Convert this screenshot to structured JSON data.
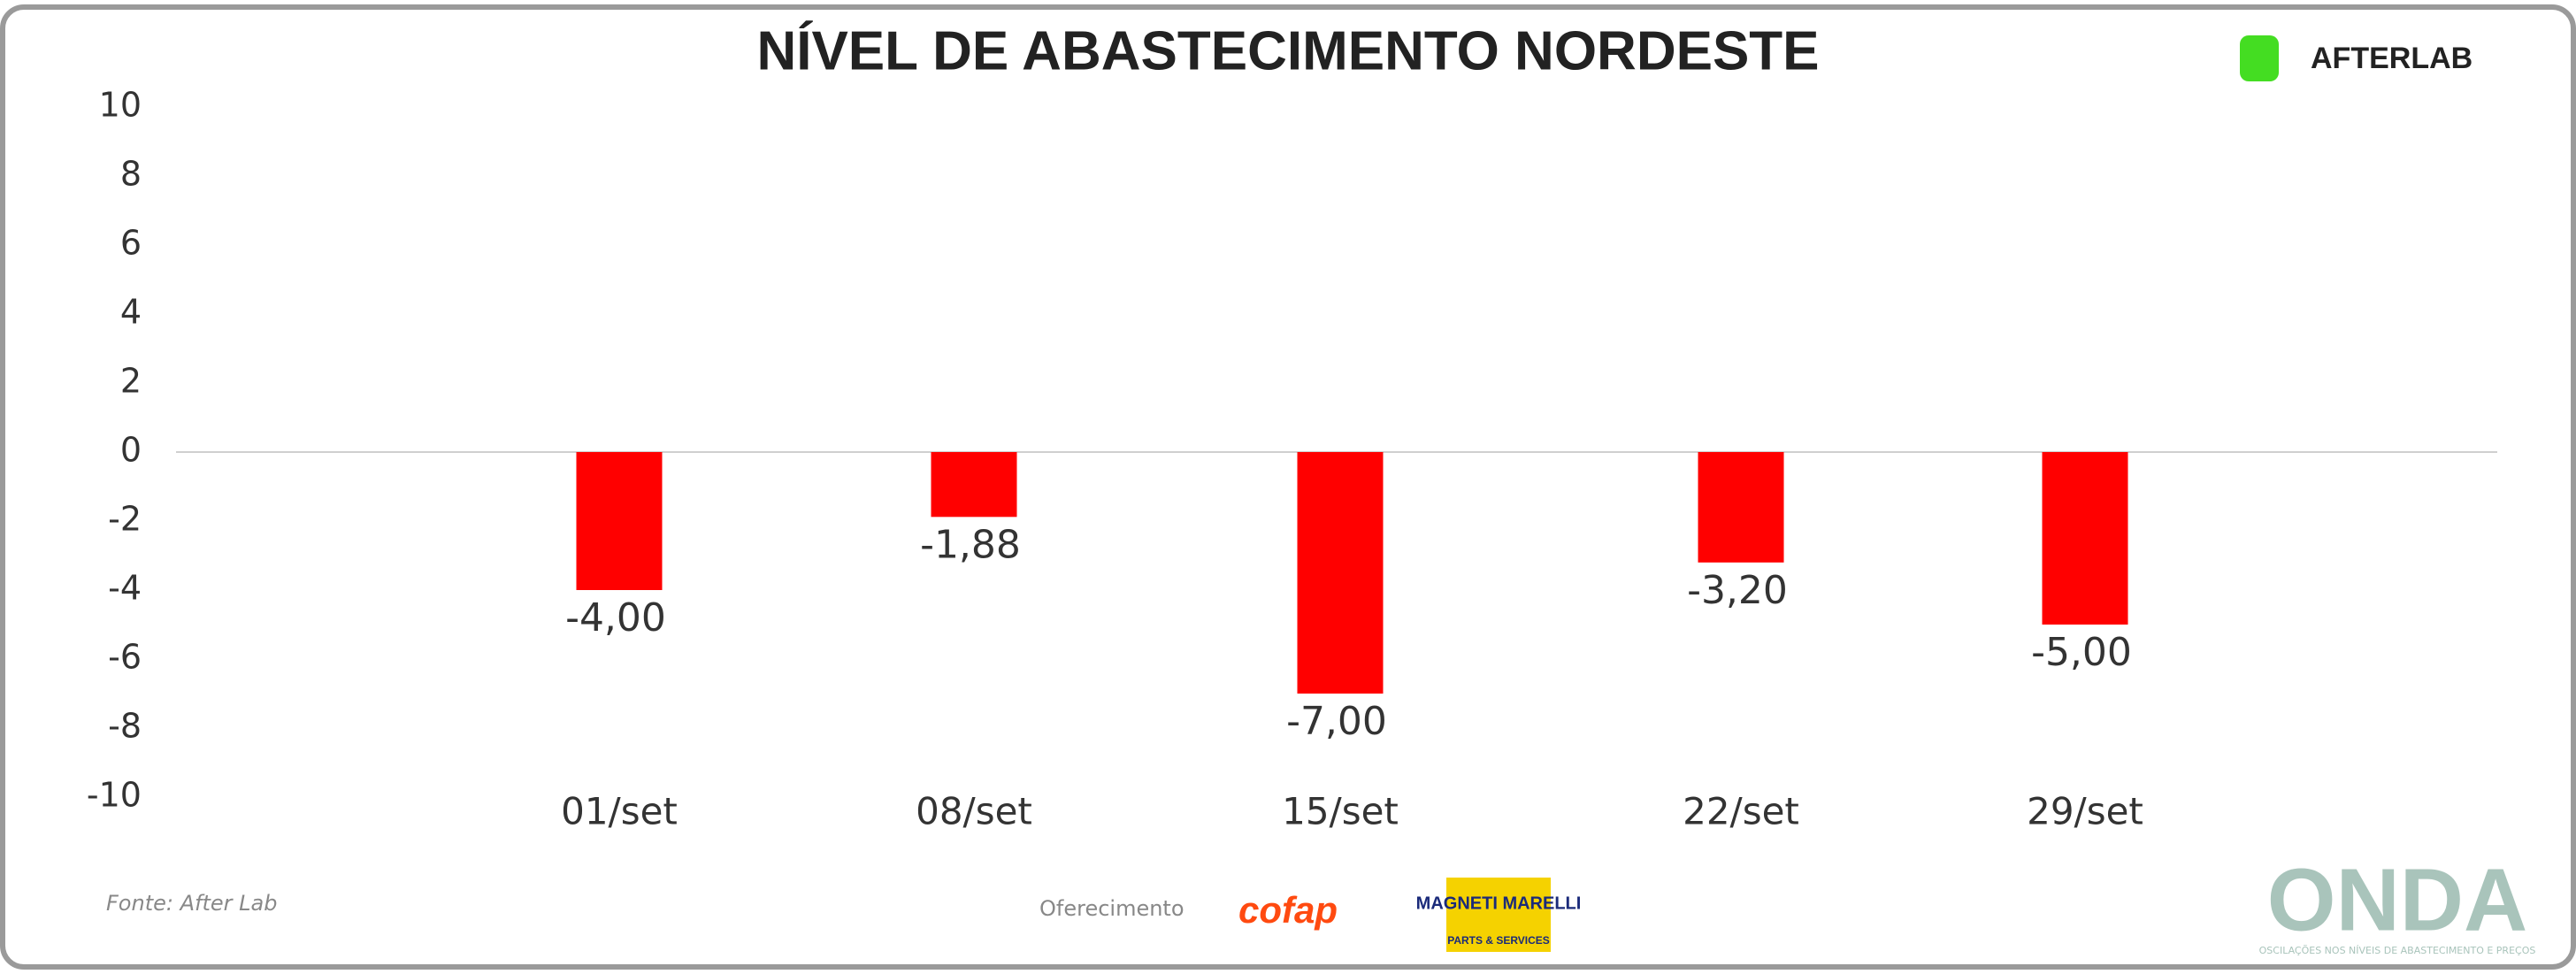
{
  "chart_data": {
    "type": "bar",
    "title": "NÍVEL DE ABASTECIMENTO NORDESTE",
    "categories": [
      "01/set",
      "08/set",
      "15/set",
      "22/set",
      "29/set"
    ],
    "values": [
      -4.0,
      -1.88,
      -7.0,
      -3.2,
      -5.0
    ],
    "value_labels": [
      "-4,00",
      "-1,88",
      "-7,00",
      "-3,20",
      "-5,00"
    ],
    "color": "#ff0000",
    "ylim": [
      -10,
      10
    ],
    "yticks": [
      -10,
      -8,
      -6,
      -4,
      -2,
      0,
      2,
      4,
      6,
      8,
      10
    ]
  },
  "footer": {
    "source": "Fonte: After Lab",
    "sponsor_label": "Oferecimento",
    "sponsors": [
      "cofap",
      "MAGNETI MARELLI",
      "PARTS & SERVICES"
    ]
  },
  "brand": {
    "logo": "AFTERLAB",
    "onda": "ONDA",
    "onda_tagline": "OSCILAÇÕES NOS NÍVEIS DE ABASTECIMENTO E PREÇOS"
  }
}
